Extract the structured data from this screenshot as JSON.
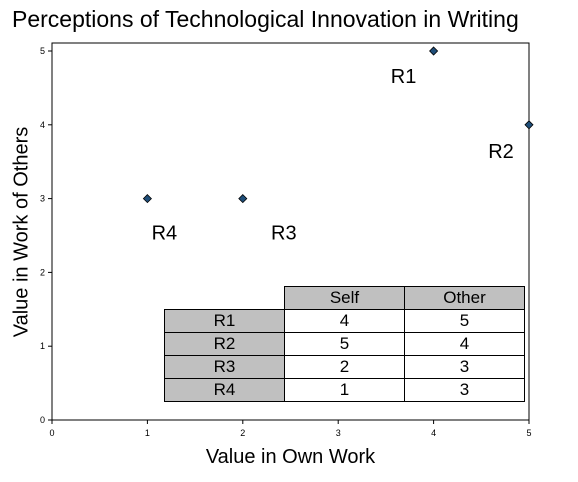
{
  "chart_data": {
    "type": "scatter",
    "title": "Perceptions of Technological Innovation in Writing",
    "xlabel": "Value in Own Work",
    "ylabel": "Value in Work of Others",
    "xlim": [
      0,
      5
    ],
    "ylim": [
      0,
      5
    ],
    "xticks": [
      "0",
      "1",
      "2",
      "3",
      "4",
      "5"
    ],
    "yticks": [
      "0",
      "1",
      "2",
      "3",
      "4",
      "5"
    ],
    "grid": false,
    "marker_color": "#1f4e79",
    "points": [
      {
        "label": "R1",
        "x": 4,
        "y": 5
      },
      {
        "label": "R2",
        "x": 5,
        "y": 4
      },
      {
        "label": "R3",
        "x": 2,
        "y": 3
      },
      {
        "label": "R4",
        "x": 1,
        "y": 3
      }
    ],
    "table": {
      "columns": [
        "Self",
        "Other"
      ],
      "rows": [
        {
          "label": "R1",
          "self": "4",
          "other": "5"
        },
        {
          "label": "R2",
          "self": "5",
          "other": "4"
        },
        {
          "label": "R3",
          "self": "2",
          "other": "3"
        },
        {
          "label": "R4",
          "self": "1",
          "other": "3"
        }
      ]
    }
  }
}
